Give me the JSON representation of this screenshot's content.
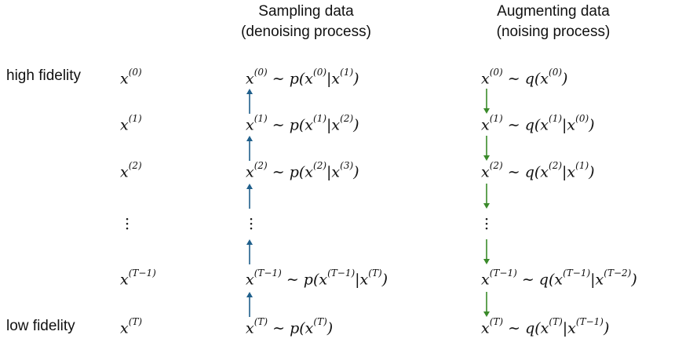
{
  "headers": {
    "sampling": {
      "line1": "Sampling data",
      "line2": "(denoising process)"
    },
    "augmenting": {
      "line1": "Augmenting data",
      "line2": "(noising process)"
    }
  },
  "fidelity": {
    "high": "high fidelity",
    "low": "low fidelity"
  },
  "colors": {
    "up_arrow": "#1f5f8b",
    "down_arrow": "#3a8a2a"
  },
  "rows": [
    {
      "x_base": "x",
      "x_sup": "(0)",
      "p": {
        "lhs_sup": "(0)",
        "rel": " ∼ p(x",
        "a_sup": "(0)",
        "mid": "|x",
        "b_sup": "(1)",
        "end": ")"
      },
      "q": {
        "lhs_sup": "(0)",
        "rel": " ∼ q(x",
        "a_sup": "(0)",
        "mid": "",
        "b_sup": "",
        "end": ")"
      }
    },
    {
      "x_base": "x",
      "x_sup": "(1)",
      "p": {
        "lhs_sup": "(1)",
        "rel": " ∼ p(x",
        "a_sup": "(1)",
        "mid": "|x",
        "b_sup": "(2)",
        "end": ")"
      },
      "q": {
        "lhs_sup": "(1)",
        "rel": " ∼ q(x",
        "a_sup": "(1)",
        "mid": "|x",
        "b_sup": "(0)",
        "end": ")"
      }
    },
    {
      "x_base": "x",
      "x_sup": "(2)",
      "p": {
        "lhs_sup": "(2)",
        "rel": " ∼ p(x",
        "a_sup": "(2)",
        "mid": "|x",
        "b_sup": "(3)",
        "end": ")"
      },
      "q": {
        "lhs_sup": "(2)",
        "rel": " ∼ q(x",
        "a_sup": "(2)",
        "mid": "|x",
        "b_sup": "(1)",
        "end": ")"
      }
    },
    {
      "x_base": "x",
      "x_sup": "(T−1)",
      "p": {
        "lhs_sup": "(T−1)",
        "rel": " ∼ p(x",
        "a_sup": "(T−1)",
        "mid": "|x",
        "b_sup": "(T)",
        "end": ")"
      },
      "q": {
        "lhs_sup": "(T−1)",
        "rel": " ∼ q(x",
        "a_sup": "(T−1)",
        "mid": "|x",
        "b_sup": "(T−2)",
        "end": ")"
      }
    },
    {
      "x_base": "x",
      "x_sup": "(T)",
      "p": {
        "lhs_sup": "(T)",
        "rel": " ∼ p(x",
        "a_sup": "(T)",
        "mid": "",
        "b_sup": "",
        "end": ")"
      },
      "q": {
        "lhs_sup": "(T)",
        "rel": " ∼ q(x",
        "a_sup": "(T)",
        "mid": "|x",
        "b_sup": "(T−1)",
        "end": ")"
      }
    }
  ]
}
